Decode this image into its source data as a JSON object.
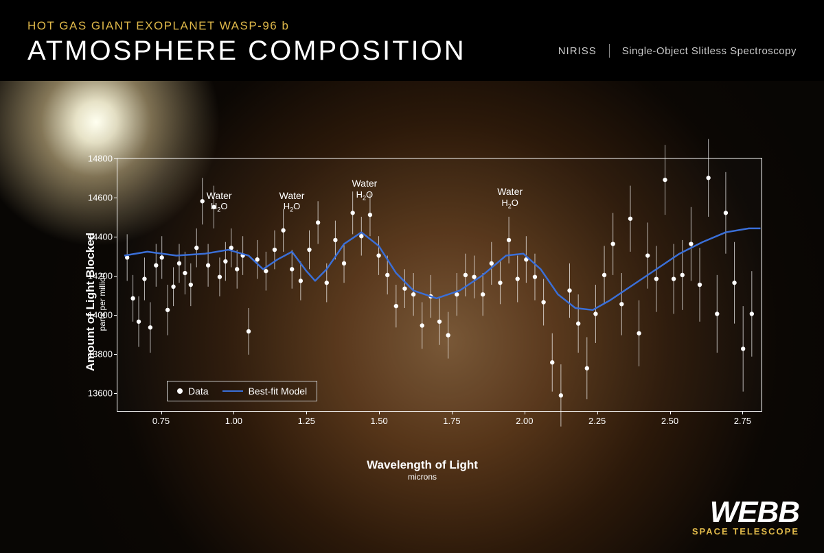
{
  "header": {
    "subtitle": "HOT GAS GIANT EXOPLANET WASP-96 b",
    "subtitle_color": "#e0b94a",
    "title": "ATMOSPHERE COMPOSITION",
    "instrument": "NIRISS",
    "mode": "Single-Object Slitless Spectroscopy"
  },
  "chart": {
    "type": "scatter-with-line",
    "background_color": "transparent",
    "axis_color": "#ffffff",
    "tick_fontsize": 13,
    "label_fontsize": 17,
    "sub_label_fontsize": 12,
    "ylabel": "Amount of Light Blocked",
    "ylabel_sub": "parts per million",
    "xlabel": "Wavelength of Light",
    "xlabel_sub": "microns",
    "xlim": [
      0.6,
      2.82
    ],
    "ylim": [
      13500,
      14800
    ],
    "xticks": [
      0.75,
      1.0,
      1.25,
      1.5,
      1.75,
      2.0,
      2.25,
      2.5,
      2.75
    ],
    "xtick_labels": [
      "0.75",
      "1.00",
      "1.25",
      "1.50",
      "1.75",
      "2.00",
      "2.25",
      "2.50",
      "2.75"
    ],
    "yticks": [
      13600,
      13800,
      14000,
      14200,
      14400,
      14600,
      14800
    ],
    "ytick_labels": [
      "13600",
      "13800",
      "14000",
      "14200",
      "14400",
      "14600",
      "14800"
    ],
    "data_marker_color": "#ffffff",
    "data_marker_radius": 3.2,
    "errorbar_color": "#ffffff",
    "errorbar_width": 1,
    "model_line_color": "#3a6fd8",
    "model_line_width": 2.5,
    "data_points": [
      {
        "x": 0.63,
        "y": 14290,
        "e": 120
      },
      {
        "x": 0.65,
        "y": 14080,
        "e": 120
      },
      {
        "x": 0.67,
        "y": 13960,
        "e": 130
      },
      {
        "x": 0.69,
        "y": 14180,
        "e": 110
      },
      {
        "x": 0.71,
        "y": 13930,
        "e": 130
      },
      {
        "x": 0.73,
        "y": 14250,
        "e": 110
      },
      {
        "x": 0.75,
        "y": 14290,
        "e": 110
      },
      {
        "x": 0.77,
        "y": 14020,
        "e": 130
      },
      {
        "x": 0.79,
        "y": 14140,
        "e": 100
      },
      {
        "x": 0.81,
        "y": 14260,
        "e": 100
      },
      {
        "x": 0.83,
        "y": 14210,
        "e": 110
      },
      {
        "x": 0.85,
        "y": 14150,
        "e": 110
      },
      {
        "x": 0.87,
        "y": 14340,
        "e": 100
      },
      {
        "x": 0.89,
        "y": 14580,
        "e": 120
      },
      {
        "x": 0.91,
        "y": 14250,
        "e": 110
      },
      {
        "x": 0.93,
        "y": 14550,
        "e": 110
      },
      {
        "x": 0.95,
        "y": 14190,
        "e": 100
      },
      {
        "x": 0.97,
        "y": 14270,
        "e": 100
      },
      {
        "x": 0.99,
        "y": 14340,
        "e": 100
      },
      {
        "x": 1.01,
        "y": 14230,
        "e": 100
      },
      {
        "x": 1.03,
        "y": 14300,
        "e": 100
      },
      {
        "x": 1.05,
        "y": 13910,
        "e": 120
      },
      {
        "x": 1.08,
        "y": 14280,
        "e": 100
      },
      {
        "x": 1.11,
        "y": 14220,
        "e": 100
      },
      {
        "x": 1.14,
        "y": 14330,
        "e": 100
      },
      {
        "x": 1.17,
        "y": 14430,
        "e": 110
      },
      {
        "x": 1.2,
        "y": 14230,
        "e": 100
      },
      {
        "x": 1.23,
        "y": 14170,
        "e": 100
      },
      {
        "x": 1.26,
        "y": 14330,
        "e": 100
      },
      {
        "x": 1.29,
        "y": 14470,
        "e": 110
      },
      {
        "x": 1.32,
        "y": 14160,
        "e": 100
      },
      {
        "x": 1.35,
        "y": 14380,
        "e": 100
      },
      {
        "x": 1.38,
        "y": 14260,
        "e": 100
      },
      {
        "x": 1.41,
        "y": 14520,
        "e": 110
      },
      {
        "x": 1.44,
        "y": 14400,
        "e": 100
      },
      {
        "x": 1.47,
        "y": 14510,
        "e": 110
      },
      {
        "x": 1.5,
        "y": 14300,
        "e": 100
      },
      {
        "x": 1.53,
        "y": 14200,
        "e": 100
      },
      {
        "x": 1.56,
        "y": 14040,
        "e": 110
      },
      {
        "x": 1.59,
        "y": 14130,
        "e": 100
      },
      {
        "x": 1.62,
        "y": 14100,
        "e": 110
      },
      {
        "x": 1.65,
        "y": 13940,
        "e": 120
      },
      {
        "x": 1.68,
        "y": 14090,
        "e": 110
      },
      {
        "x": 1.71,
        "y": 13960,
        "e": 120
      },
      {
        "x": 1.74,
        "y": 13890,
        "e": 120
      },
      {
        "x": 1.77,
        "y": 14100,
        "e": 110
      },
      {
        "x": 1.8,
        "y": 14200,
        "e": 110
      },
      {
        "x": 1.83,
        "y": 14190,
        "e": 110
      },
      {
        "x": 1.86,
        "y": 14100,
        "e": 110
      },
      {
        "x": 1.89,
        "y": 14260,
        "e": 110
      },
      {
        "x": 1.92,
        "y": 14160,
        "e": 110
      },
      {
        "x": 1.95,
        "y": 14380,
        "e": 120
      },
      {
        "x": 1.98,
        "y": 14180,
        "e": 120
      },
      {
        "x": 2.01,
        "y": 14280,
        "e": 120
      },
      {
        "x": 2.04,
        "y": 14190,
        "e": 120
      },
      {
        "x": 2.07,
        "y": 14060,
        "e": 120
      },
      {
        "x": 2.1,
        "y": 13750,
        "e": 150
      },
      {
        "x": 2.13,
        "y": 13580,
        "e": 160
      },
      {
        "x": 2.16,
        "y": 14120,
        "e": 140
      },
      {
        "x": 2.19,
        "y": 13950,
        "e": 150
      },
      {
        "x": 2.22,
        "y": 13720,
        "e": 160
      },
      {
        "x": 2.25,
        "y": 14000,
        "e": 150
      },
      {
        "x": 2.28,
        "y": 14200,
        "e": 150
      },
      {
        "x": 2.31,
        "y": 14360,
        "e": 160
      },
      {
        "x": 2.34,
        "y": 14050,
        "e": 160
      },
      {
        "x": 2.37,
        "y": 14490,
        "e": 170
      },
      {
        "x": 2.4,
        "y": 13900,
        "e": 170
      },
      {
        "x": 2.43,
        "y": 14300,
        "e": 170
      },
      {
        "x": 2.46,
        "y": 14180,
        "e": 170
      },
      {
        "x": 2.49,
        "y": 14690,
        "e": 180
      },
      {
        "x": 2.52,
        "y": 14180,
        "e": 180
      },
      {
        "x": 2.55,
        "y": 14200,
        "e": 180
      },
      {
        "x": 2.58,
        "y": 14360,
        "e": 190
      },
      {
        "x": 2.61,
        "y": 14150,
        "e": 190
      },
      {
        "x": 2.64,
        "y": 14700,
        "e": 200
      },
      {
        "x": 2.67,
        "y": 14000,
        "e": 200
      },
      {
        "x": 2.7,
        "y": 14520,
        "e": 210
      },
      {
        "x": 2.73,
        "y": 14160,
        "e": 210
      },
      {
        "x": 2.76,
        "y": 13820,
        "e": 220
      },
      {
        "x": 2.79,
        "y": 14000,
        "e": 220
      }
    ],
    "model_curve": [
      {
        "x": 0.62,
        "y": 14300
      },
      {
        "x": 0.7,
        "y": 14320
      },
      {
        "x": 0.8,
        "y": 14300
      },
      {
        "x": 0.9,
        "y": 14310
      },
      {
        "x": 0.98,
        "y": 14330
      },
      {
        "x": 1.05,
        "y": 14300
      },
      {
        "x": 1.1,
        "y": 14230
      },
      {
        "x": 1.15,
        "y": 14280
      },
      {
        "x": 1.2,
        "y": 14320
      },
      {
        "x": 1.25,
        "y": 14220
      },
      {
        "x": 1.28,
        "y": 14170
      },
      {
        "x": 1.32,
        "y": 14230
      },
      {
        "x": 1.38,
        "y": 14360
      },
      {
        "x": 1.44,
        "y": 14420
      },
      {
        "x": 1.5,
        "y": 14350
      },
      {
        "x": 1.56,
        "y": 14210
      },
      {
        "x": 1.62,
        "y": 14120
      },
      {
        "x": 1.7,
        "y": 14080
      },
      {
        "x": 1.78,
        "y": 14120
      },
      {
        "x": 1.86,
        "y": 14200
      },
      {
        "x": 1.94,
        "y": 14300
      },
      {
        "x": 2.0,
        "y": 14310
      },
      {
        "x": 2.06,
        "y": 14230
      },
      {
        "x": 2.12,
        "y": 14100
      },
      {
        "x": 2.18,
        "y": 14030
      },
      {
        "x": 2.24,
        "y": 14020
      },
      {
        "x": 2.3,
        "y": 14070
      },
      {
        "x": 2.38,
        "y": 14150
      },
      {
        "x": 2.46,
        "y": 14230
      },
      {
        "x": 2.54,
        "y": 14310
      },
      {
        "x": 2.62,
        "y": 14370
      },
      {
        "x": 2.7,
        "y": 14420
      },
      {
        "x": 2.78,
        "y": 14440
      },
      {
        "x": 2.82,
        "y": 14440
      }
    ],
    "annotations": [
      {
        "x": 0.95,
        "y_top": 14640,
        "label": "Water",
        "chem": "H₂O"
      },
      {
        "x": 1.2,
        "y_top": 14640,
        "label": "Water",
        "chem": "H₂O"
      },
      {
        "x": 1.45,
        "y_top": 14700,
        "label": "Water",
        "chem": "H₂O"
      },
      {
        "x": 1.95,
        "y_top": 14660,
        "label": "Water",
        "chem": "H₂O"
      }
    ],
    "legend": {
      "data_label": "Data",
      "model_label": "Best-fit Model"
    }
  },
  "logo": {
    "main": "WEBB",
    "sub": "SPACE TELESCOPE",
    "sub_color": "#e0b94a"
  }
}
